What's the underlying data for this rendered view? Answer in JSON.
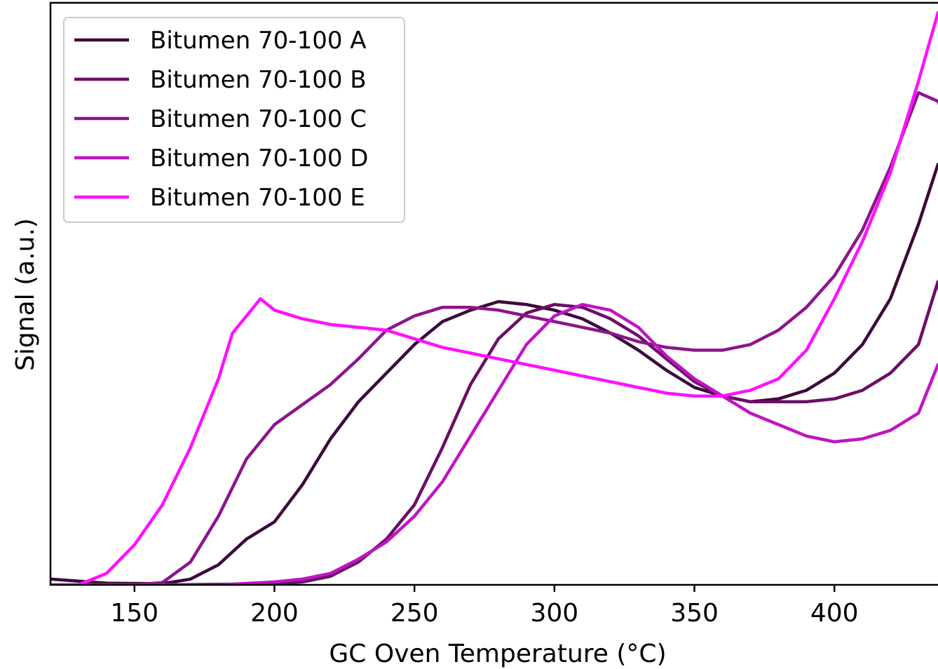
{
  "chart_data": {
    "type": "line",
    "xlabel": "GC Oven Temperature (°C)",
    "ylabel": "Signal (a.u.)",
    "xlim": [
      120,
      438
    ],
    "ylim": [
      0,
      1.0
    ],
    "xticks": [
      150,
      200,
      250,
      300,
      350,
      400
    ],
    "y_tick_labels_shown": false,
    "grid": false,
    "legend_position": "top-left",
    "series": [
      {
        "name": "Bitumen 70-100 A",
        "color": "#3d0a3a",
        "x": [
          120,
          140,
          160,
          170,
          180,
          190,
          200,
          210,
          220,
          230,
          240,
          250,
          260,
          270,
          280,
          290,
          300,
          310,
          320,
          330,
          340,
          350,
          360,
          370,
          380,
          390,
          400,
          410,
          420,
          430,
          437,
          438
        ],
        "y": [
          0.01,
          0.003,
          0.002,
          0.01,
          0.035,
          0.08,
          0.11,
          0.175,
          0.255,
          0.32,
          0.37,
          0.42,
          0.46,
          0.48,
          0.495,
          0.49,
          0.48,
          0.465,
          0.44,
          0.41,
          0.375,
          0.345,
          0.33,
          0.32,
          0.325,
          0.34,
          0.37,
          0.42,
          0.5,
          0.63,
          0.735,
          0.72
        ]
      },
      {
        "name": "Bitumen 70-100 B",
        "color": "#6b0e66",
        "x": [
          120,
          160,
          200,
          210,
          220,
          230,
          240,
          250,
          260,
          270,
          280,
          290,
          300,
          310,
          320,
          330,
          340,
          350,
          360,
          370,
          380,
          390,
          400,
          410,
          420,
          430,
          437,
          438
        ],
        "y": [
          0.0,
          0.0,
          0.002,
          0.005,
          0.015,
          0.04,
          0.08,
          0.14,
          0.24,
          0.35,
          0.43,
          0.475,
          0.49,
          0.485,
          0.465,
          0.435,
          0.395,
          0.355,
          0.33,
          0.32,
          0.32,
          0.32,
          0.325,
          0.34,
          0.37,
          0.42,
          0.53,
          0.5
        ]
      },
      {
        "name": "Bitumen 70-100 C",
        "color": "#8e148c",
        "x": [
          120,
          150,
          160,
          170,
          180,
          190,
          200,
          210,
          220,
          230,
          240,
          250,
          260,
          270,
          280,
          290,
          300,
          310,
          320,
          330,
          340,
          350,
          360,
          370,
          380,
          390,
          400,
          410,
          420,
          430,
          437,
          438
        ],
        "y": [
          0.0,
          0.0,
          0.004,
          0.04,
          0.12,
          0.22,
          0.28,
          0.315,
          0.35,
          0.395,
          0.445,
          0.47,
          0.485,
          0.485,
          0.48,
          0.47,
          0.46,
          0.45,
          0.44,
          0.425,
          0.415,
          0.41,
          0.41,
          0.42,
          0.445,
          0.485,
          0.54,
          0.62,
          0.73,
          0.86,
          0.845,
          0.835
        ]
      },
      {
        "name": "Bitumen 70-100 D",
        "color": "#c014c4",
        "x": [
          120,
          180,
          200,
          210,
          220,
          230,
          240,
          250,
          260,
          270,
          280,
          290,
          300,
          310,
          320,
          330,
          340,
          350,
          360,
          370,
          380,
          390,
          400,
          410,
          420,
          430,
          437,
          438
        ],
        "y": [
          0.0,
          0.0,
          0.005,
          0.01,
          0.02,
          0.045,
          0.075,
          0.12,
          0.18,
          0.26,
          0.34,
          0.42,
          0.47,
          0.49,
          0.48,
          0.45,
          0.4,
          0.36,
          0.33,
          0.3,
          0.28,
          0.26,
          0.25,
          0.255,
          0.27,
          0.3,
          0.385,
          0.38
        ]
      },
      {
        "name": "Bitumen 70-100 E",
        "color": "#ff10ff",
        "x": [
          120,
          130,
          140,
          150,
          160,
          170,
          180,
          185,
          190,
          195,
          200,
          210,
          220,
          230,
          240,
          250,
          260,
          270,
          280,
          290,
          300,
          310,
          320,
          330,
          340,
          350,
          360,
          370,
          380,
          390,
          400,
          410,
          420,
          430,
          437,
          438
        ],
        "y": [
          0.0,
          0.0,
          0.02,
          0.07,
          0.14,
          0.24,
          0.36,
          0.44,
          0.47,
          0.5,
          0.48,
          0.465,
          0.455,
          0.45,
          0.445,
          0.43,
          0.415,
          0.405,
          0.395,
          0.385,
          0.375,
          0.365,
          0.355,
          0.345,
          0.335,
          0.33,
          0.33,
          0.34,
          0.36,
          0.41,
          0.5,
          0.6,
          0.72,
          0.88,
          1.0,
          0.985
        ]
      }
    ]
  }
}
